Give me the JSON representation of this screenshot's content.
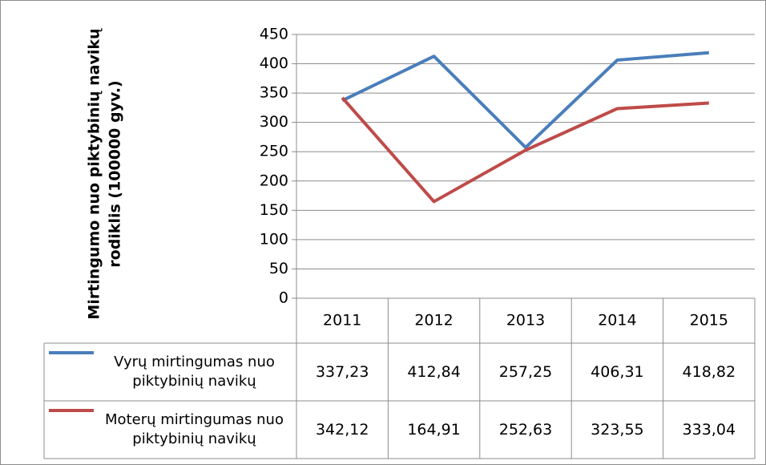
{
  "chart_data": {
    "type": "line",
    "y_label": [
      "Mirtingumo nuo piktybinių navikų",
      "rodiklis (100000 gyv.)"
    ],
    "categories": [
      "2011",
      "2012",
      "2013",
      "2014",
      "2015"
    ],
    "series": [
      {
        "name": "Vyrų mirtingumas nuo piktybinių navikų",
        "color": "#4a7ebb",
        "values": [
          337.23,
          412.84,
          257.25,
          406.31,
          418.82
        ],
        "value_labels": [
          "337,23",
          "412,84",
          "257,25",
          "406,31",
          "418,82"
        ]
      },
      {
        "name": "Moterų mirtingumas nuo piktybinių navikų",
        "color": "#be4b48",
        "values": [
          342.12,
          164.91,
          252.63,
          323.55,
          333.04
        ],
        "value_labels": [
          "342,12",
          "164,91",
          "252,63",
          "323,55",
          "333,04"
        ]
      }
    ],
    "ylim": [
      0,
      450
    ],
    "yticks": [
      0,
      50,
      100,
      150,
      200,
      250,
      300,
      350,
      400,
      450
    ],
    "grid": true
  }
}
